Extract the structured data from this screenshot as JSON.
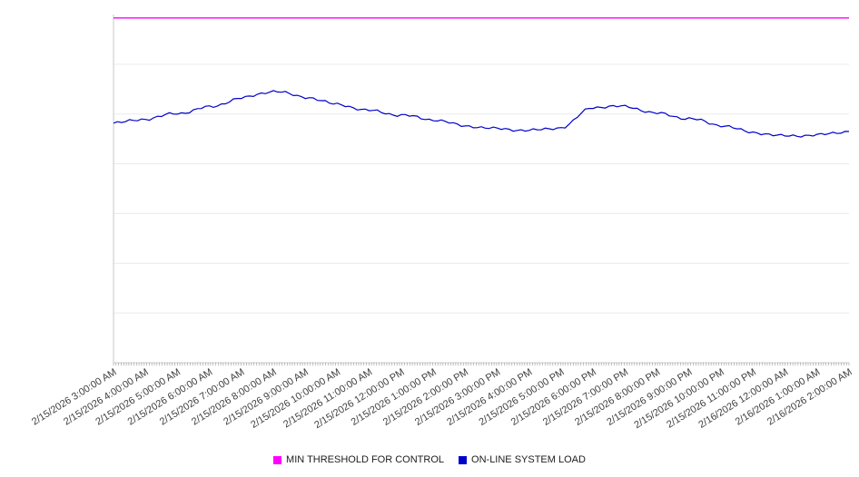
{
  "chart_data": {
    "type": "line",
    "title": "",
    "xlabel": "",
    "ylabel": "",
    "ylim": [
      0,
      100
    ],
    "y_ticks_shown": false,
    "y_grid_divisions": 7,
    "grid": "horizontal",
    "x_tick_rotation": -32,
    "x_minor_ticks_per_range": 288,
    "categories": [
      "2/15/2026 3:00:00 AM",
      "2/15/2026 4:00:00 AM",
      "2/15/2026 5:00:00 AM",
      "2/15/2026 6:00:00 AM",
      "2/15/2026 7:00:00 AM",
      "2/15/2026 8:00:00 AM",
      "2/15/2026 9:00:00 AM",
      "2/15/2026 10:00:00 AM",
      "2/15/2026 11:00:00 AM",
      "2/15/2026 12:00:00 PM",
      "2/15/2026 1:00:00 PM",
      "2/15/2026 2:00:00 PM",
      "2/15/2026 3:00:00 PM",
      "2/15/2026 4:00:00 PM",
      "2/15/2026 5:00:00 PM",
      "2/15/2026 6:00:00 PM",
      "2/15/2026 7:00:00 PM",
      "2/15/2026 8:00:00 PM",
      "2/15/2026 9:00:00 PM",
      "2/15/2026 10:00:00 PM",
      "2/15/2026 11:00:00 PM",
      "2/16/2026 12:00:00 AM",
      "2/16/2026 1:00:00 AM",
      "2/16/2026 2:00:00 AM"
    ],
    "series": [
      {
        "name": "MIN THRESHOLD FOR CONTROL",
        "type": "threshold",
        "color": "#ff00ff",
        "value": 99
      },
      {
        "name": "ON-LINE SYSTEM LOAD",
        "type": "line",
        "color": "#0000cc",
        "values": [
          68.8,
          70.0,
          71.6,
          73.4,
          76.0,
          78.0,
          76.3,
          74.2,
          72.4,
          71.1,
          69.8,
          68.0,
          67.2,
          66.7,
          67.5,
          73.4,
          73.6,
          71.6,
          70.1,
          68.2,
          66.1,
          65.1,
          65.4,
          66.4
        ]
      }
    ],
    "legend": {
      "position": "bottom-center",
      "entries": [
        {
          "label": "MIN THRESHOLD FOR CONTROL",
          "color": "#ff00ff"
        },
        {
          "label": "ON-LINE SYSTEM LOAD",
          "color": "#0000cc"
        }
      ]
    }
  }
}
